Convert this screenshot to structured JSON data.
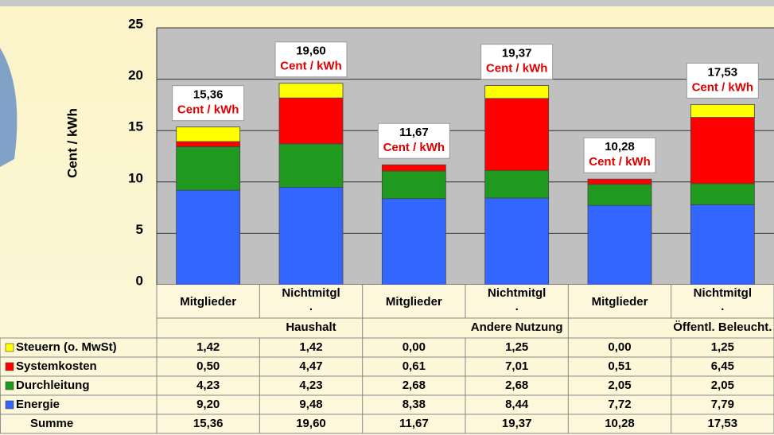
{
  "chart_data": {
    "type": "stacked-bar",
    "y_label": "Cent / kWh",
    "categories": [
      "Mitglieder",
      "Nichtmitgl\n.",
      "Mitglieder",
      "Nichtmitgl\n.",
      "Mitglieder",
      "Nichtmitgl\n."
    ],
    "groups": [
      "Haushalt",
      "Andere Nutzung",
      "Öffentl. Beleucht."
    ],
    "series": [
      {
        "name": "Energie",
        "color": "#3366ff",
        "values": [
          9.2,
          9.48,
          8.38,
          8.44,
          7.72,
          7.79
        ],
        "value_labels": [
          "9,20",
          "9,48",
          "8,38",
          "8,44",
          "7,72",
          "7,79"
        ]
      },
      {
        "name": "Durchleitung",
        "color": "#1f9a1f",
        "values": [
          4.23,
          4.23,
          2.68,
          2.68,
          2.05,
          2.05
        ],
        "value_labels": [
          "4,23",
          "4,23",
          "2,68",
          "2,68",
          "2,05",
          "2,05"
        ]
      },
      {
        "name": "Systemkosten",
        "color": "#ff0000",
        "values": [
          0.5,
          4.47,
          0.61,
          7.01,
          0.51,
          6.45
        ],
        "value_labels": [
          "0,50",
          "4,47",
          "0,61",
          "7,01",
          "0,51",
          "6,45"
        ]
      },
      {
        "name": "Steuern (o. MwSt)",
        "color": "#ffff00",
        "values": [
          1.42,
          1.42,
          0.0,
          1.25,
          0.0,
          1.25
        ],
        "value_labels": [
          "1,42",
          "1,42",
          "0,00",
          "1,25",
          "0,00",
          "1,25"
        ]
      }
    ],
    "total_name": "Summe",
    "totals": [
      15.36,
      19.6,
      11.67,
      19.37,
      10.28,
      17.53
    ],
    "total_labels": [
      "15,36",
      "19,60",
      "11,67",
      "19,37",
      "10,28",
      "17,53"
    ],
    "total_unit": "Cent / kWh",
    "ylim": [
      0,
      25
    ],
    "yticks": [
      0,
      5,
      10,
      15,
      20,
      25
    ],
    "grid": true
  }
}
